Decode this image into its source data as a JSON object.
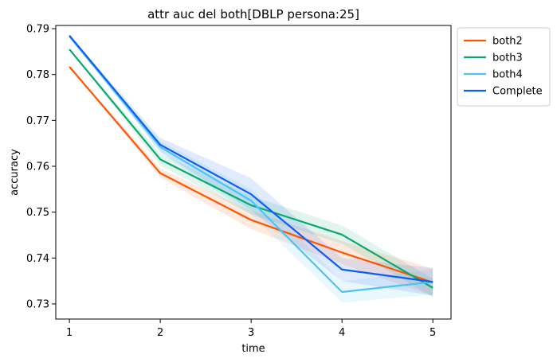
{
  "chart_data": {
    "type": "line",
    "title": "attr auc del both[DBLP persona:25]",
    "xlabel": "time",
    "ylabel": "accuracy",
    "x": [
      1,
      2,
      3,
      4,
      5
    ],
    "x_ticks": [
      "1",
      "2",
      "3",
      "4",
      "5"
    ],
    "ylim": [
      0.7267,
      0.7907
    ],
    "y_ticks": [
      0.73,
      0.74,
      0.75,
      0.76,
      0.77,
      0.78,
      0.79
    ],
    "y_tick_labels": [
      "0.73",
      "0.74",
      "0.75",
      "0.76",
      "0.77",
      "0.78",
      "0.79"
    ],
    "grid": false,
    "legend_position": "outside-right-top",
    "series": [
      {
        "name": "both2",
        "color": "#ff5500",
        "values": [
          0.7817,
          0.7585,
          0.7483,
          0.7412,
          0.7347
        ],
        "band": [
          [
            0.7817,
            0.7817
          ],
          [
            0.7575,
            0.7595
          ],
          [
            0.7463,
            0.7503
          ],
          [
            0.7387,
            0.7437
          ],
          [
            0.7317,
            0.7377
          ]
        ]
      },
      {
        "name": "both3",
        "color": "#0aa86b",
        "values": [
          0.7855,
          0.7615,
          0.7515,
          0.7451,
          0.7335
        ],
        "band": [
          [
            0.7855,
            0.7855
          ],
          [
            0.7602,
            0.7628
          ],
          [
            0.7495,
            0.7535
          ],
          [
            0.7431,
            0.7471
          ],
          [
            0.7315,
            0.7355
          ]
        ]
      },
      {
        "name": "both4",
        "color": "#4cc3f2",
        "values": [
          0.7883,
          0.7642,
          0.7525,
          0.7326,
          0.7348
        ],
        "band": [
          [
            0.7883,
            0.7883
          ],
          [
            0.763,
            0.7655
          ],
          [
            0.7495,
            0.755
          ],
          [
            0.7303,
            0.7349
          ],
          [
            0.732,
            0.7376
          ]
        ]
      },
      {
        "name": "Complete",
        "color": "#0a5ef5",
        "values": [
          0.7885,
          0.7647,
          0.7539,
          0.7375,
          0.7348
        ],
        "band": [
          [
            0.7885,
            0.7885
          ],
          [
            0.7632,
            0.7662
          ],
          [
            0.7504,
            0.7574
          ],
          [
            0.735,
            0.74
          ],
          [
            0.7318,
            0.7378
          ]
        ]
      }
    ]
  }
}
